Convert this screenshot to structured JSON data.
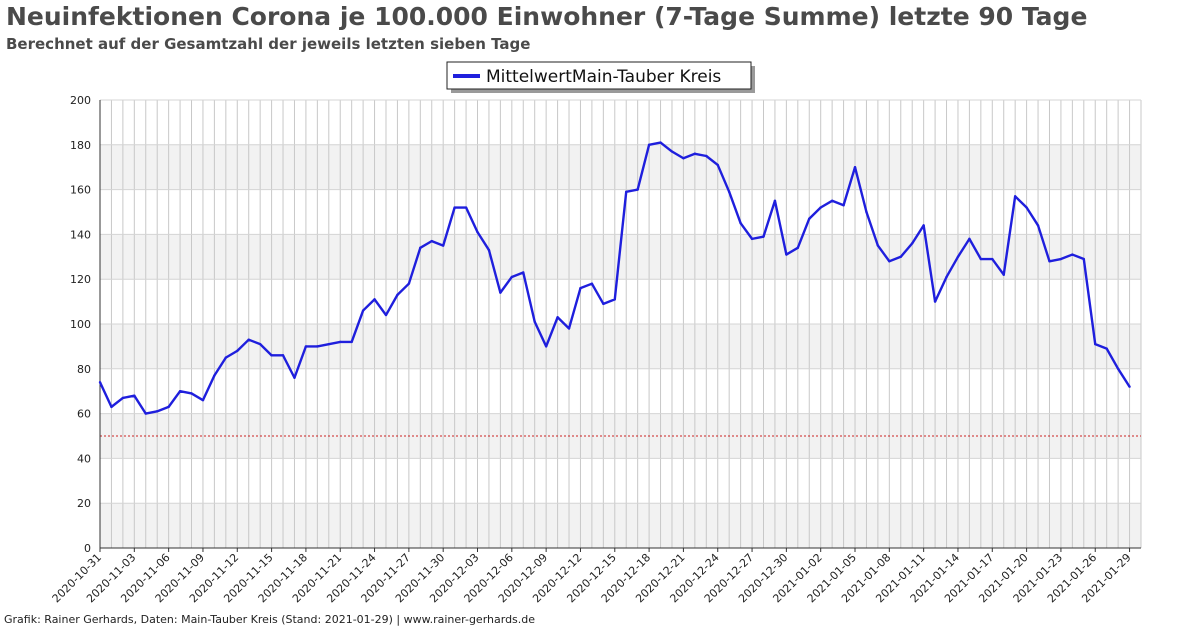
{
  "header": {
    "title": "Neuinfektionen Corona je 100.000 Einwohner (7-Tage Summe) letzte 90 Tage",
    "subtitle": "Berechnet auf der Gesamtzahl der jeweils letzten sieben Tage"
  },
  "footer": {
    "credit": "Grafik: Rainer Gerhards, Daten: Main-Tauber Kreis (Stand: 2021-01-29) | www.rainer-gerhards.de"
  },
  "colors": {
    "series": "#1f1fdd",
    "threshold": "#cc2222",
    "band": "#f2f2f2",
    "grid": "#c8c8c8"
  },
  "chart_data": {
    "type": "line",
    "title": "Neuinfektionen Corona je 100.000 Einwohner (7-Tage Summe) letzte 90 Tage",
    "subtitle": "Berechnet auf der Gesamtzahl der jeweils letzten sieben Tage",
    "xlabel": "",
    "ylabel": "",
    "x_start": "2020-10-31",
    "x_end": "2021-01-30",
    "x_ticks": [
      "2020-10-31",
      "2020-11-03",
      "2020-11-06",
      "2020-11-09",
      "2020-11-12",
      "2020-11-15",
      "2020-11-18",
      "2020-11-21",
      "2020-11-24",
      "2020-11-27",
      "2020-11-30",
      "2020-12-03",
      "2020-12-06",
      "2020-12-09",
      "2020-12-12",
      "2020-12-15",
      "2020-12-18",
      "2020-12-21",
      "2020-12-24",
      "2020-12-27",
      "2020-12-30",
      "2021-01-02",
      "2021-01-05",
      "2021-01-08",
      "2021-01-11",
      "2021-01-14",
      "2021-01-17",
      "2021-01-20",
      "2021-01-23",
      "2021-01-26",
      "2021-01-29"
    ],
    "y_ticks": [
      0,
      20,
      40,
      60,
      80,
      100,
      120,
      140,
      160,
      180,
      200
    ],
    "ylim": [
      0,
      200
    ],
    "grid": true,
    "legend_position": "top-center",
    "threshold": 50,
    "series": [
      {
        "name": "MittelwertMain-Tauber Kreis",
        "values": [
          74,
          63,
          67,
          68,
          60,
          61,
          63,
          70,
          69,
          66,
          77,
          85,
          88,
          93,
          91,
          86,
          86,
          76,
          90,
          90,
          91,
          92,
          92,
          106,
          111,
          104,
          113,
          118,
          134,
          137,
          135,
          152,
          152,
          141,
          133,
          114,
          121,
          123,
          101,
          90,
          103,
          98,
          116,
          118,
          109,
          111,
          159,
          160,
          180,
          181,
          177,
          174,
          176,
          175,
          171,
          159,
          145,
          138,
          139,
          155,
          131,
          134,
          147,
          152,
          155,
          153,
          170,
          150,
          135,
          128,
          130,
          136,
          144,
          110,
          121,
          130,
          138,
          129,
          129,
          122,
          157,
          152,
          144,
          128,
          129,
          131,
          129,
          91,
          89,
          80,
          72
        ],
        "color": "#1f1fdd"
      }
    ]
  }
}
